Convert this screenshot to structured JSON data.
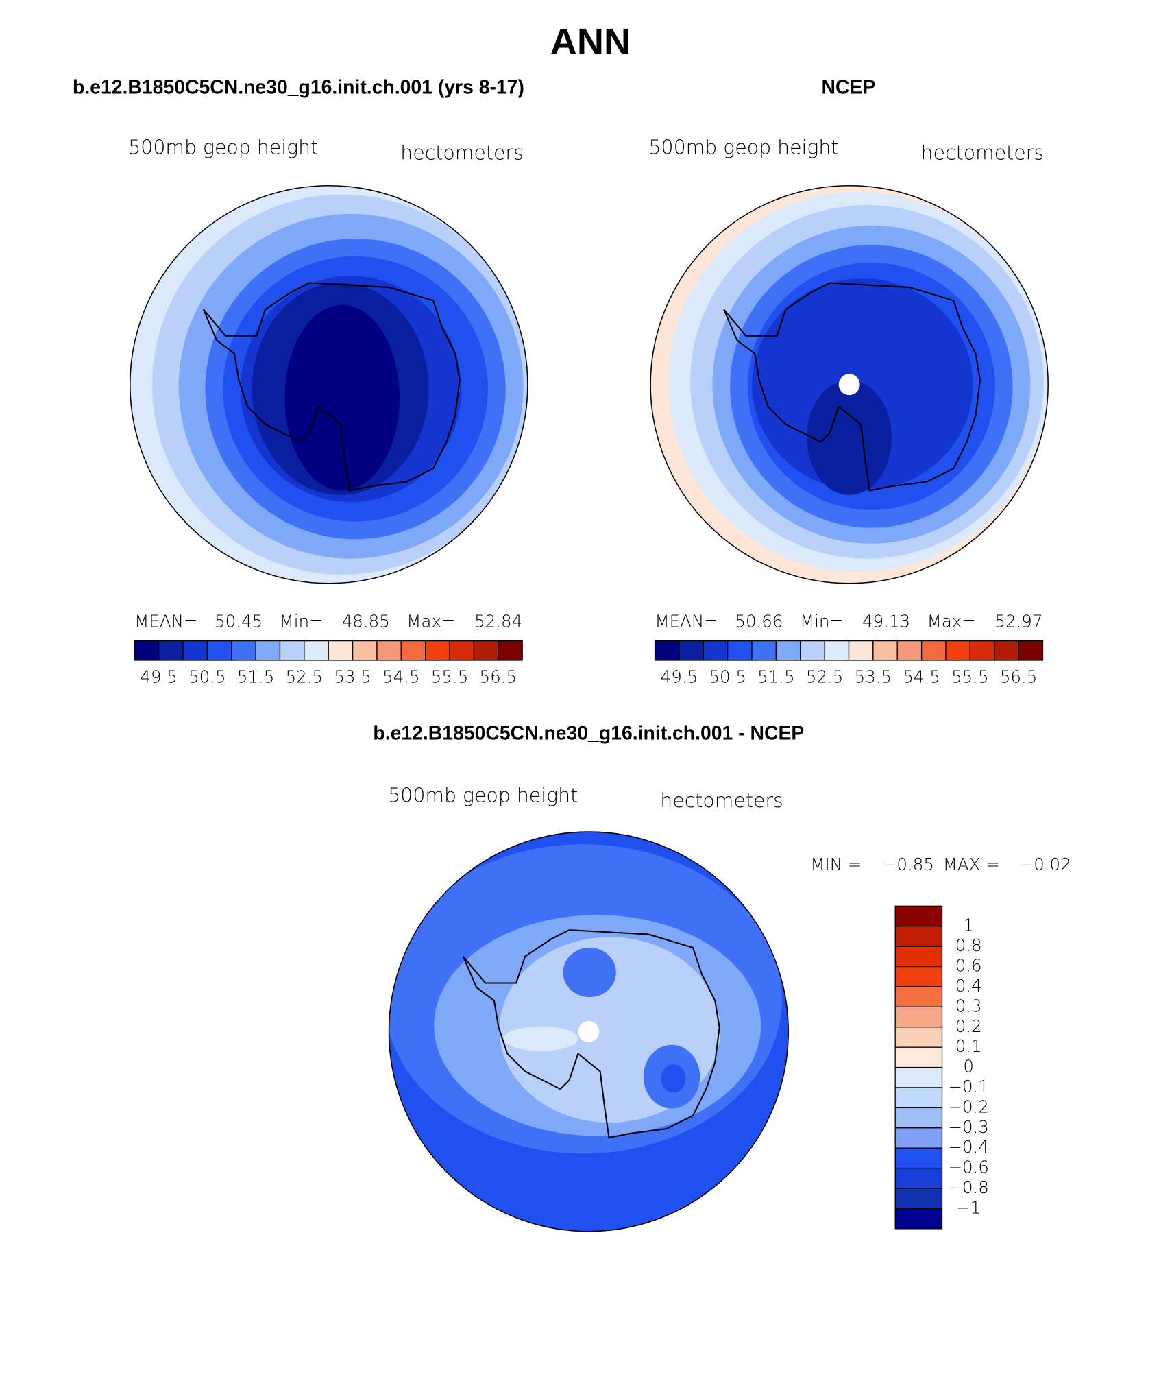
{
  "title": "ANN",
  "panels": [
    {
      "title": "b.e12.B1850C5CN.ne30_g16.init.ch.001 (yrs 8-17)",
      "variable": "500mb geop height",
      "units": "hectometers",
      "stats": {
        "mean_label": "MEAN=",
        "mean": 50.45,
        "min_label": "Min=",
        "min": 48.85,
        "max_label": "Max=",
        "max": 52.84
      },
      "colorbar": {
        "colors": [
          "#000080",
          "#0a1ea0",
          "#1535d0",
          "#2050f0",
          "#4070f5",
          "#80a8f8",
          "#b8d0fa",
          "#dce9fb",
          "#fde6d8",
          "#f9c0a0",
          "#f5987a",
          "#f26b40",
          "#f04010",
          "#d82a08",
          "#b01c05",
          "#7a0000"
        ],
        "labels": [
          49.5,
          50.5,
          51.5,
          52.5,
          53.5,
          54.5,
          55.5,
          56.5
        ]
      }
    },
    {
      "title": "NCEP",
      "variable": "500mb geop height",
      "units": "hectometers",
      "stats": {
        "mean_label": "MEAN=",
        "mean": 50.66,
        "min_label": "Min=",
        "min": 49.13,
        "max_label": "Max=",
        "max": 52.97
      },
      "colorbar": {
        "colors": [
          "#000080",
          "#0a1ea0",
          "#1535d0",
          "#2050f0",
          "#4070f5",
          "#80a8f8",
          "#b8d0fa",
          "#dce9fb",
          "#fde6d8",
          "#f9c0a0",
          "#f5987a",
          "#f26b40",
          "#f04010",
          "#d82a08",
          "#b01c05",
          "#7a0000"
        ],
        "labels": [
          49.5,
          50.5,
          51.5,
          52.5,
          53.5,
          54.5,
          55.5,
          56.5
        ]
      }
    }
  ],
  "difference": {
    "title": "b.e12.B1850C5CN.ne30_g16.init.ch.001 - NCEP",
    "variable": "500mb geop height",
    "units": "hectometers",
    "stats": {
      "min_label": "MIN =",
      "min": "−0.85",
      "max_label": "MAX =",
      "max": "−0.02"
    },
    "colorbar": {
      "colors": [
        "#8b0000",
        "#c02000",
        "#e03000",
        "#f04010",
        "#f57040",
        "#f8a888",
        "#fbd0b8",
        "#fde8dc",
        "#dce9fb",
        "#c0d8fa",
        "#a0bef8",
        "#80a0f5",
        "#2050f0",
        "#1840d8",
        "#1030b0",
        "#000090"
      ],
      "labels": [
        "1",
        "0.8",
        "0.6",
        "0.4",
        "0.3",
        "0.2",
        "0.1",
        "0",
        "−0.1",
        "−0.2",
        "−0.3",
        "−0.4",
        "−0.6",
        "−0.8",
        "−1"
      ]
    }
  }
}
